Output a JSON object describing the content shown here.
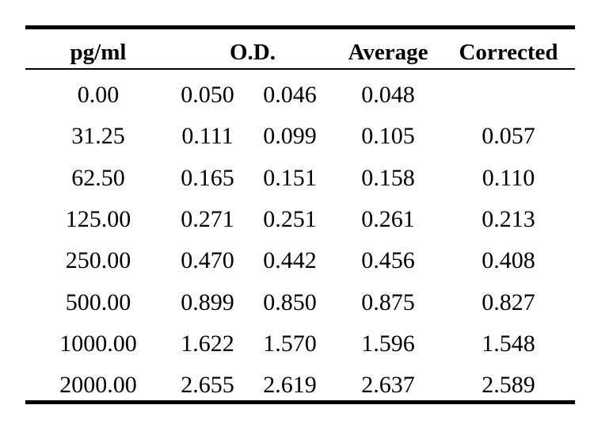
{
  "table": {
    "headers": [
      "pg/ml",
      "O.D.",
      "Average",
      "Corrected"
    ],
    "rows": [
      {
        "conc": "0.00",
        "od1": "0.050",
        "od2": "0.046",
        "avg": "0.048",
        "corr": ""
      },
      {
        "conc": "31.25",
        "od1": "0.111",
        "od2": "0.099",
        "avg": "0.105",
        "corr": "0.057"
      },
      {
        "conc": "62.50",
        "od1": "0.165",
        "od2": "0.151",
        "avg": "0.158",
        "corr": "0.110"
      },
      {
        "conc": "125.00",
        "od1": "0.271",
        "od2": "0.251",
        "avg": "0.261",
        "corr": "0.213"
      },
      {
        "conc": "250.00",
        "od1": "0.470",
        "od2": "0.442",
        "avg": "0.456",
        "corr": "0.408"
      },
      {
        "conc": "500.00",
        "od1": "0.899",
        "od2": "0.850",
        "avg": "0.875",
        "corr": "0.827"
      },
      {
        "conc": "1000.00",
        "od1": "1.622",
        "od2": "1.570",
        "avg": "1.596",
        "corr": "1.548"
      },
      {
        "conc": "2000.00",
        "od1": "2.655",
        "od2": "2.619",
        "avg": "2.637",
        "corr": "2.589"
      }
    ]
  }
}
